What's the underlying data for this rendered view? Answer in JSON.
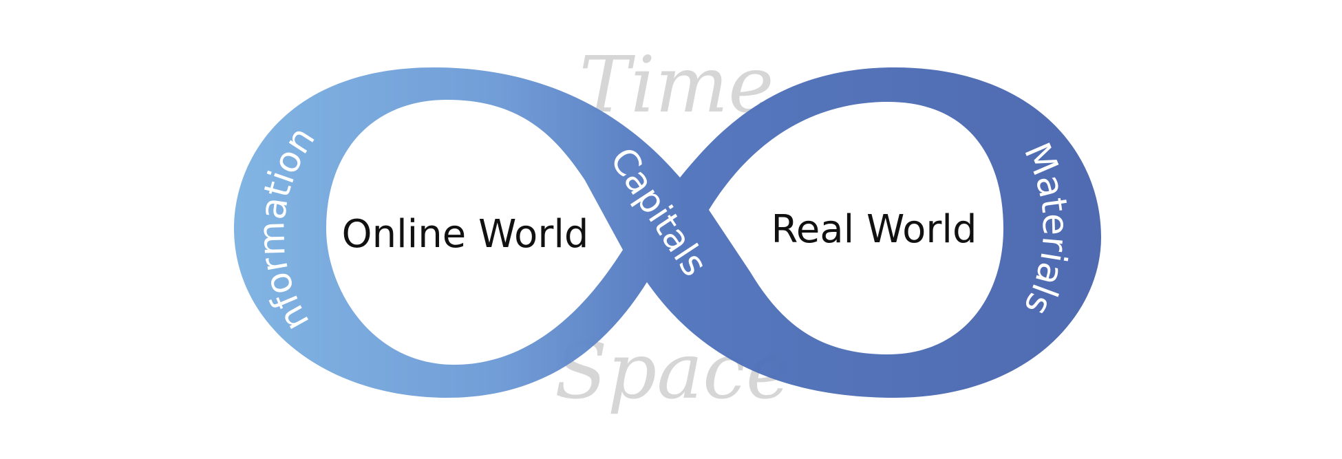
{
  "diagram": {
    "time_label": "Time",
    "space_label": "Space",
    "left_loop_label": "Online World",
    "right_loop_label": "Real World",
    "left_band_label": "Information",
    "center_band_label": "Capitals",
    "right_band_label": "Materials"
  },
  "colors": {
    "left_band": "#7baee0",
    "mid_band": "#5a82c8",
    "right_band": "#4a68b0",
    "watermark": "#d6d6d6"
  }
}
